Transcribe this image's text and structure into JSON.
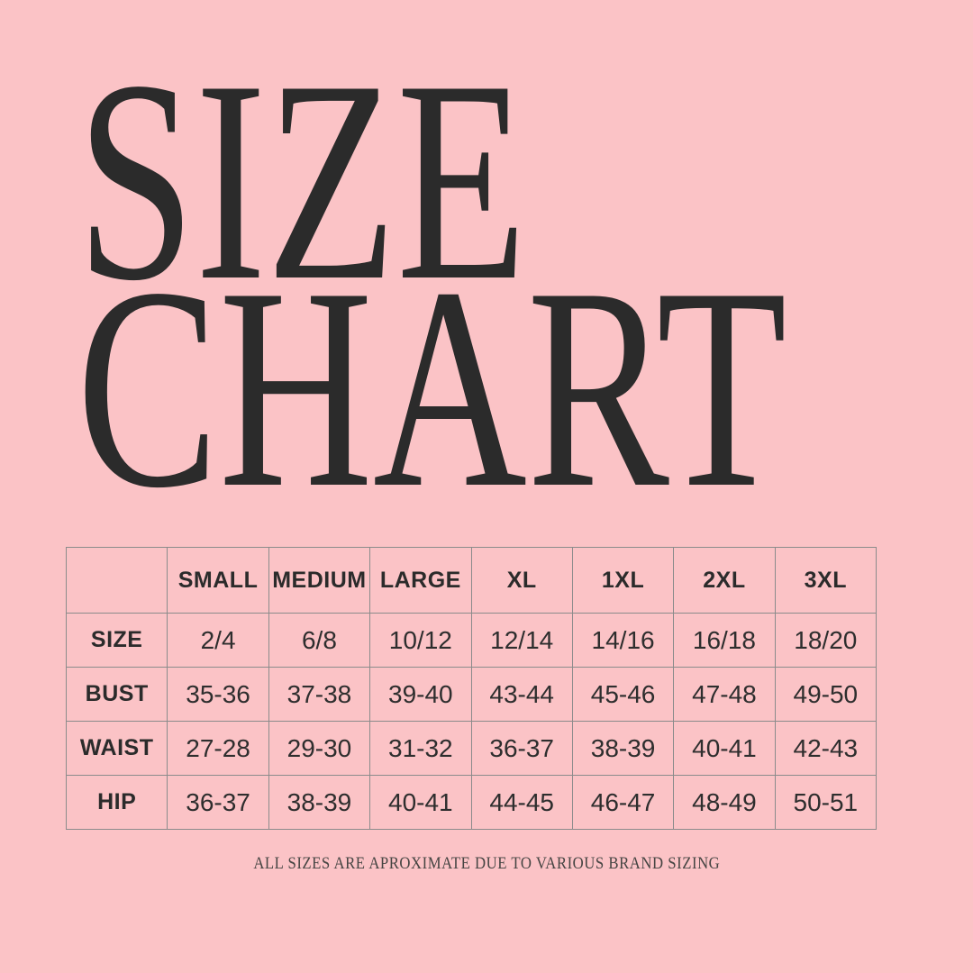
{
  "title": {
    "line1": "SIZE",
    "line2": "CHART"
  },
  "chart_data": {
    "type": "table",
    "title": "SIZE CHART",
    "header": [
      "",
      "SMALL",
      "MEDIUM",
      "LARGE",
      "XL",
      "1XL",
      "2XL",
      "3XL"
    ],
    "rows": [
      [
        "SIZE",
        "2/4",
        "6/8",
        "10/12",
        "12/14",
        "14/16",
        "16/18",
        "18/20"
      ],
      [
        "BUST",
        "35-36",
        "37-38",
        "39-40",
        "43-44",
        "45-46",
        "47-48",
        "49-50"
      ],
      [
        "WAIST",
        "27-28",
        "29-30",
        "31-32",
        "36-37",
        "38-39",
        "40-41",
        "42-43"
      ],
      [
        "HIP",
        "36-37",
        "38-39",
        "40-41",
        "44-45",
        "46-47",
        "48-49",
        "50-51"
      ]
    ],
    "footnote": "ALL SIZES ARE APROXIMATE DUE TO VARIOUS BRAND SIZING"
  },
  "footer": {
    "note": "ALL SIZES ARE APROXIMATE DUE TO VARIOUS BRAND SIZING"
  },
  "colors": {
    "background": "#fbc3c6",
    "ink": "#2b2b2b",
    "table_border": "#8b8b8b",
    "footnote_ink": "#454442"
  }
}
